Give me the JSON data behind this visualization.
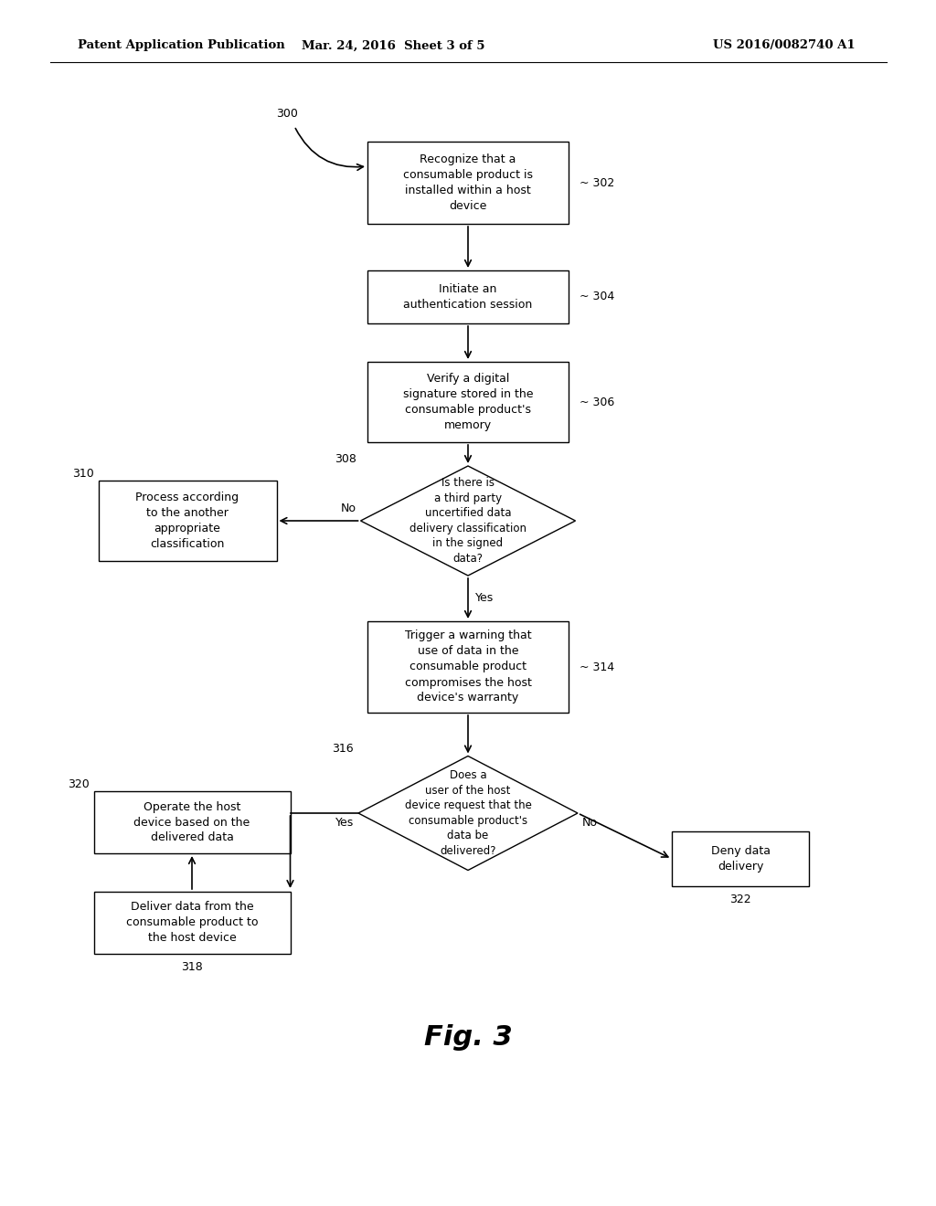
{
  "bg_color": "#ffffff",
  "header_left": "Patent Application Publication",
  "header_mid": "Mar. 24, 2016  Sheet 3 of 5",
  "header_right": "US 2016/0082740 A1",
  "fig_label": "Fig. 3"
}
